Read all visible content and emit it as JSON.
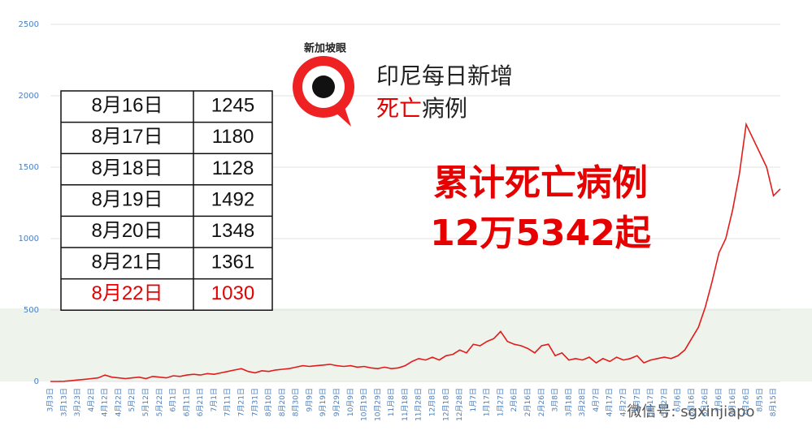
{
  "chart_data": {
    "type": "line",
    "title_line1": "印尼每日新增",
    "title_line2": [
      {
        "text": "死亡",
        "color": "#e60000"
      },
      {
        "text": "病例",
        "color": "#222222"
      }
    ],
    "headline": [
      "累计死亡病例",
      "12万5342起"
    ],
    "headline_color": "#e60000",
    "logo_text": "新加坡眼",
    "watermark": "微信号: sgxinjiapo",
    "categories": [
      "3月3日",
      null,
      "3月13日",
      null,
      "3月23日",
      null,
      "4月2日",
      null,
      "4月12日",
      null,
      "4月22日",
      null,
      "5月2日",
      null,
      "5月12日",
      null,
      "5月22日",
      null,
      "6月1日",
      null,
      "6月11日",
      null,
      "6月21日",
      null,
      "7月1日",
      null,
      "7月11日",
      null,
      "7月21日",
      null,
      "7月31日",
      null,
      "8月10日",
      null,
      "8月20日",
      null,
      "8月30日",
      null,
      "9月9日",
      null,
      "9月19日",
      null,
      "9月29日",
      null,
      "10月9日",
      null,
      "10月19日",
      null,
      "10月29日",
      null,
      "11月8日",
      null,
      "11月18日",
      null,
      "11月28日",
      null,
      "12月8日",
      null,
      "12月18日",
      null,
      "12月28日",
      null,
      "1月7日",
      null,
      "1月17日",
      null,
      "1月27日",
      null,
      "2月6日",
      null,
      "2月16日",
      null,
      "2月26日",
      null,
      "3月8日",
      null,
      "3月18日",
      null,
      "3月28日",
      null,
      "4月7日",
      null,
      "4月17日",
      null,
      "4月27日",
      null,
      "5月7日",
      null,
      "5月17日",
      null,
      "5月27日",
      null,
      "6月6日",
      null,
      "6月16日",
      null,
      "6月26日",
      null,
      "7月6日",
      null,
      "7月16日",
      null,
      "7月26日",
      null,
      "8月5日",
      null,
      "8月15日",
      null
    ],
    "series": [
      {
        "color": "#e31b1b",
        "values": [
          0,
          0,
          1,
          5,
          10,
          15,
          20,
          25,
          45,
          30,
          25,
          20,
          25,
          30,
          20,
          35,
          30,
          25,
          40,
          35,
          45,
          50,
          45,
          55,
          50,
          60,
          70,
          80,
          90,
          70,
          60,
          75,
          70,
          80,
          85,
          90,
          100,
          110,
          105,
          110,
          115,
          120,
          110,
          105,
          110,
          100,
          105,
          95,
          90,
          100,
          90,
          95,
          110,
          140,
          160,
          150,
          170,
          150,
          180,
          190,
          220,
          200,
          260,
          250,
          280,
          300,
          350,
          280,
          260,
          250,
          230,
          200,
          250,
          260,
          180,
          200,
          150,
          160,
          150,
          170,
          130,
          160,
          140,
          170,
          150,
          160,
          180,
          130,
          150,
          160,
          170,
          160,
          180,
          220,
          300,
          380,
          520,
          700,
          900,
          1000,
          1200,
          1450,
          1800,
          1700,
          1600,
          1500,
          1300,
          1348
        ]
      }
    ],
    "ylim": [
      0,
      2500
    ],
    "yticks": [
      0,
      500,
      1000,
      1500,
      2000,
      2500
    ],
    "grid": true
  },
  "table": {
    "rows": [
      [
        "8月16日",
        1245
      ],
      [
        "8月17日",
        1180
      ],
      [
        "8月18日",
        1128
      ],
      [
        "8月19日",
        1492
      ],
      [
        "8月20日",
        1348
      ],
      [
        "8月21日",
        1361
      ],
      [
        "8月22日",
        1030
      ]
    ],
    "highlight_row": 6,
    "highlight_color": "#e60000"
  }
}
